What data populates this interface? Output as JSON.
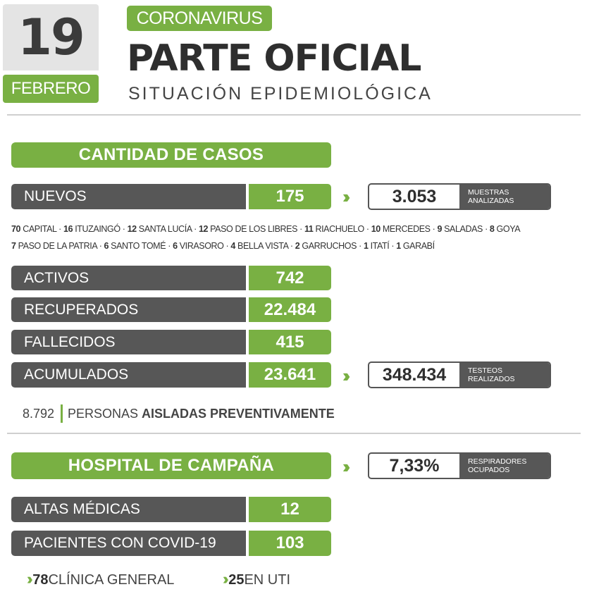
{
  "header": {
    "day": "19",
    "month": "FEBRERO",
    "tag": "CORONAVIRUS",
    "title": "PARTE OFICIAL",
    "subtitle": "SITUACIÓN EPIDEMIOLÓGICA"
  },
  "casos": {
    "heading": "CANTIDAD DE CASOS",
    "nuevos": {
      "label": "NUEVOS",
      "value": "175"
    },
    "muestras": {
      "value": "3.053",
      "label_line1": "MUESTRAS",
      "label_line2": "ANALIZADAS"
    },
    "departamentos_line1": [
      {
        "n": "70",
        "name": "CAPITAL"
      },
      {
        "n": "16",
        "name": "ITUZAINGÓ"
      },
      {
        "n": "12",
        "name": "SANTA LUCÍA"
      },
      {
        "n": "12",
        "name": "PASO DE LOS LIBRES"
      },
      {
        "n": "11",
        "name": "RIACHUELO"
      },
      {
        "n": "10",
        "name": "MERCEDES"
      },
      {
        "n": "9",
        "name": "SALADAS"
      },
      {
        "n": "8",
        "name": "GOYA"
      }
    ],
    "departamentos_line2": [
      {
        "n": "7",
        "name": "PASO DE LA PATRIA"
      },
      {
        "n": "6",
        "name": "SANTO TOMÉ"
      },
      {
        "n": "6",
        "name": "VIRASORO"
      },
      {
        "n": "4",
        "name": "BELLA VISTA"
      },
      {
        "n": "2",
        "name": "GARRUCHOS"
      },
      {
        "n": "1",
        "name": "ITATÍ"
      },
      {
        "n": "1",
        "name": "GARABÍ"
      }
    ],
    "activos": {
      "label": "ACTIVOS",
      "value": "742"
    },
    "recuperados": {
      "label": "RECUPERADOS",
      "value": "22.484"
    },
    "fallecidos": {
      "label": "FALLECIDOS",
      "value": "415"
    },
    "acumulados": {
      "label": "ACUMULADOS",
      "value": "23.641"
    },
    "testeos": {
      "value": "348.434",
      "label_line1": "TESTEOS",
      "label_line2": "REALIZADOS"
    },
    "aislados": {
      "number": "8.792",
      "text_normal": "PERSONAS ",
      "text_bold": "AISLADAS PREVENTIVAMENTE"
    }
  },
  "hospital": {
    "heading": "HOSPITAL DE CAMPAÑA",
    "respiradores": {
      "value": "7,33%",
      "label_line1": "RESPIRADORES",
      "label_line2": "OCUPADOS"
    },
    "altas": {
      "label": "ALTAS MÉDICAS",
      "value": "12"
    },
    "pacientes": {
      "label": "PACIENTES CON COVID-19",
      "value": "103"
    },
    "clinica": {
      "number": "78",
      "text": "CLÍNICA GENERAL"
    },
    "uti": {
      "number": "25",
      "text": "EN UTI"
    }
  },
  "colors": {
    "accent_green": "#79b043",
    "dark_gray": "#575757",
    "light_gray": "#e4e4e4"
  },
  "icons": {
    "chevron": "double-chevron-right-icon"
  }
}
